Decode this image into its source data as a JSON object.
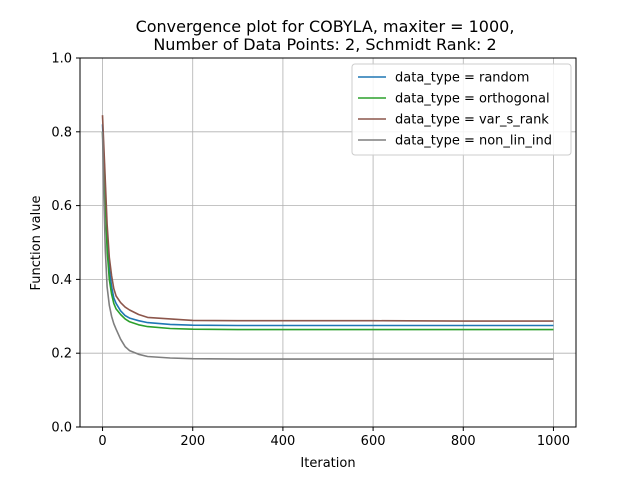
{
  "chart_data": {
    "type": "line",
    "title": "Convergence plot for COBYLA, maxiter = 1000,",
    "subtitle": "Number of Data Points: 2, Schmidt Rank: 2",
    "xlabel": "Iteration",
    "ylabel": "Function value",
    "xlim": [
      -50,
      1050
    ],
    "ylim": [
      0.0,
      1.0
    ],
    "xticks": [
      0,
      200,
      400,
      600,
      800,
      1000
    ],
    "yticks": [
      0.0,
      0.2,
      0.4,
      0.6,
      0.8,
      1.0
    ],
    "xtick_labels": [
      "0",
      "200",
      "400",
      "600",
      "800",
      "1000"
    ],
    "ytick_labels": [
      "0.0",
      "0.2",
      "0.4",
      "0.6",
      "0.8",
      "1.0"
    ],
    "grid": true,
    "legend_position": "top-right",
    "series": [
      {
        "name": "data_type = random",
        "color": "#1f77b4",
        "x": [
          0,
          5,
          10,
          15,
          20,
          25,
          30,
          40,
          50,
          60,
          80,
          100,
          150,
          200,
          300,
          400,
          600,
          800,
          1000
        ],
        "y": [
          0.82,
          0.68,
          0.52,
          0.43,
          0.38,
          0.35,
          0.335,
          0.315,
          0.302,
          0.295,
          0.288,
          0.283,
          0.278,
          0.276,
          0.275,
          0.275,
          0.275,
          0.275,
          0.275
        ]
      },
      {
        "name": "data_type = orthogonal",
        "color": "#2ca02c",
        "x": [
          0,
          5,
          10,
          15,
          20,
          25,
          30,
          40,
          50,
          60,
          80,
          100,
          150,
          200,
          300,
          400,
          600,
          800,
          1000
        ],
        "y": [
          0.8,
          0.64,
          0.48,
          0.4,
          0.36,
          0.335,
          0.32,
          0.305,
          0.293,
          0.285,
          0.277,
          0.272,
          0.267,
          0.265,
          0.264,
          0.264,
          0.264,
          0.264,
          0.264
        ]
      },
      {
        "name": "data_type = var_s_rank",
        "color": "#8c564b",
        "x": [
          0,
          5,
          10,
          15,
          20,
          25,
          30,
          40,
          50,
          60,
          80,
          100,
          150,
          200,
          300,
          400,
          600,
          800,
          1000
        ],
        "y": [
          0.845,
          0.7,
          0.55,
          0.46,
          0.41,
          0.375,
          0.355,
          0.337,
          0.325,
          0.317,
          0.305,
          0.297,
          0.293,
          0.289,
          0.288,
          0.288,
          0.288,
          0.287,
          0.287
        ]
      },
      {
        "name": "data_type = non_lin_ind",
        "color": "#7f7f7f",
        "x": [
          0,
          3,
          6,
          10,
          15,
          20,
          25,
          30,
          40,
          50,
          60,
          80,
          100,
          150,
          200,
          300,
          400,
          600,
          800,
          1000
        ],
        "y": [
          0.8,
          0.62,
          0.48,
          0.38,
          0.33,
          0.3,
          0.28,
          0.265,
          0.238,
          0.218,
          0.207,
          0.197,
          0.191,
          0.187,
          0.185,
          0.184,
          0.184,
          0.184,
          0.184,
          0.184
        ]
      }
    ]
  }
}
